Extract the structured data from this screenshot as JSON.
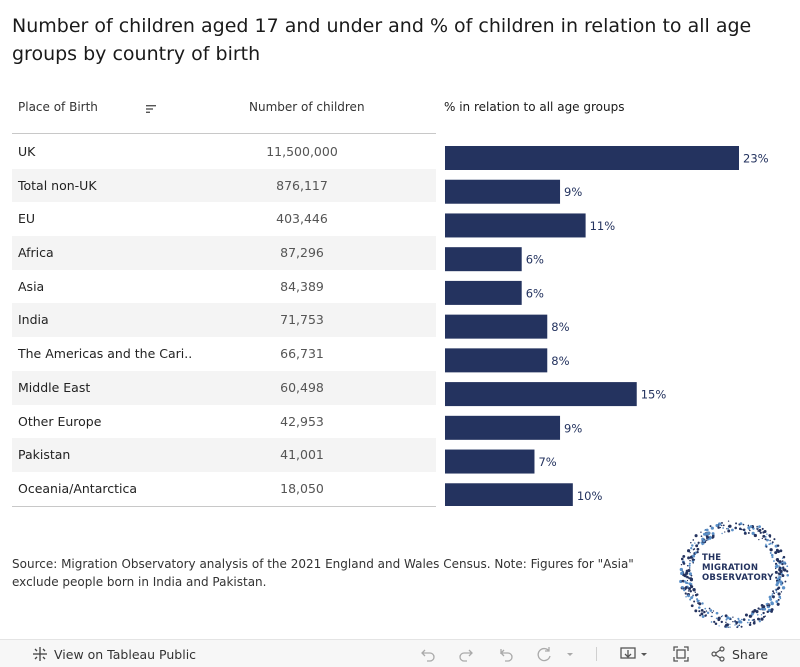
{
  "title": "Number of children aged 17 and under and % of children in relation to all age groups by country of birth",
  "table": {
    "col_place": "Place of Birth",
    "col_number": "Number of children",
    "col_pct": "% in relation to all age groups"
  },
  "chart_data": {
    "type": "bar",
    "orientation": "horizontal",
    "title": "% in relation to all age groups",
    "categories": [
      "UK",
      "Total non-UK",
      "EU",
      "Africa",
      "Asia",
      "India",
      "The Americas and the Cari..",
      "Middle East",
      "Other Europe",
      "Pakistan",
      "Oceania/Antarctica"
    ],
    "number_of_children": [
      "11,500,000",
      "876,117",
      "403,446",
      "87,296",
      "84,389",
      "71,753",
      "66,731",
      "60,498",
      "42,953",
      "41,001",
      "18,050"
    ],
    "values": [
      23,
      9,
      11,
      6,
      6,
      8,
      8,
      15,
      9,
      7,
      10
    ],
    "value_labels": [
      "23%",
      "9%",
      "11%",
      "6%",
      "6%",
      "8%",
      "8%",
      "15%",
      "9%",
      "7%",
      "10%"
    ],
    "xlim": [
      0,
      23
    ],
    "bar_color": "#24335f"
  },
  "source": "Source: Migration Observatory analysis of the 2021 England and Wales Census. Note: Figures for \"Asia\" exclude people born in India and Pakistan.",
  "logo": {
    "line1": "THE",
    "line2": "MIGRATION",
    "line3": "OBSERVATORY"
  },
  "footer": {
    "view_label": "View on Tableau Public",
    "share_label": "Share",
    "icons": [
      "tableau-icon",
      "undo-icon",
      "redo-icon",
      "revert-icon",
      "refresh-icon",
      "download-icon",
      "fullscreen-icon",
      "share-icon"
    ]
  }
}
